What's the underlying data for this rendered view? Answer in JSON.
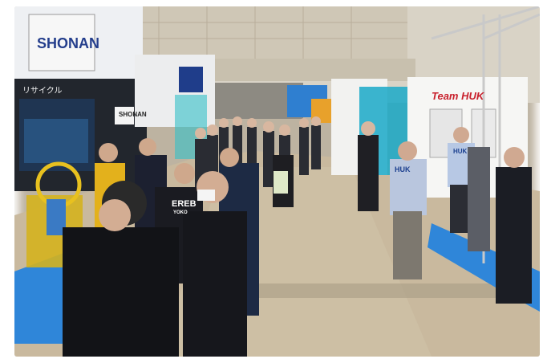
{
  "scene": {
    "signs": {
      "shonan_banner": "SHONAN",
      "shonan_booth": "SHONAN",
      "recycle_label": "リサイクル",
      "team_huk": "Team HUK",
      "huk_jacket": "HUK",
      "huk_shirt": "HUK",
      "ereb_jacket": "EREB",
      "yokohama_text": "YOKO"
    },
    "colors": {
      "floor": "#c9b99e",
      "ceiling_wall": "#d8d1c3",
      "booth_blue": "#2a6fd6",
      "banner_navy": "#1f3552",
      "carpet_blue": "#2f86d9",
      "yellow_jacket": "#e8c11f"
    }
  }
}
